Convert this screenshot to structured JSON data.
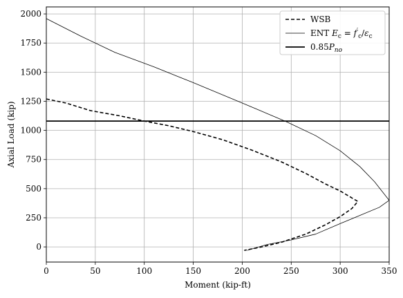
{
  "chart_data": {
    "type": "line",
    "title": "",
    "xlabel": "Moment (kip-ft)",
    "ylabel": "Axial Load (kip)",
    "xlim": [
      0,
      350
    ],
    "ylim": [
      -130,
      2060
    ],
    "xticks": [
      0,
      50,
      100,
      150,
      200,
      250,
      300,
      350
    ],
    "yticks": [
      0,
      250,
      500,
      750,
      1000,
      1250,
      1500,
      1750,
      2000
    ],
    "grid": true,
    "legend_position": "top-right",
    "series": [
      {
        "name": "WSB",
        "style": "dashed",
        "color": "#000000",
        "points": [
          [
            0,
            1270
          ],
          [
            20,
            1235
          ],
          [
            45,
            1170
          ],
          [
            75,
            1125
          ],
          [
            100,
            1080
          ],
          [
            125,
            1040
          ],
          [
            150,
            990
          ],
          [
            180,
            920
          ],
          [
            210,
            830
          ],
          [
            240,
            730
          ],
          [
            265,
            630
          ],
          [
            285,
            540
          ],
          [
            300,
            480
          ],
          [
            312,
            420
          ],
          [
            318,
            390
          ],
          [
            312,
            330
          ],
          [
            300,
            260
          ],
          [
            285,
            190
          ],
          [
            265,
            110
          ],
          [
            240,
            40
          ],
          [
            220,
            0
          ],
          [
            202,
            -30
          ]
        ]
      },
      {
        "name": "ENT E_c = f'_c/ε_c",
        "style": "solid-thin",
        "color": "#000000",
        "points": [
          [
            0,
            1960
          ],
          [
            35,
            1810
          ],
          [
            70,
            1670
          ],
          [
            110,
            1545
          ],
          [
            150,
            1410
          ],
          [
            200,
            1235
          ],
          [
            245,
            1075
          ],
          [
            275,
            955
          ],
          [
            300,
            825
          ],
          [
            320,
            690
          ],
          [
            335,
            560
          ],
          [
            350,
            400
          ],
          [
            340,
            340
          ],
          [
            320,
            270
          ],
          [
            300,
            200
          ],
          [
            275,
            110
          ],
          [
            250,
            60
          ],
          [
            225,
            20
          ],
          [
            205,
            -30
          ]
        ]
      },
      {
        "name": "0.85P_no",
        "style": "solid-thick",
        "color": "#000000",
        "points": [
          [
            0,
            1080
          ],
          [
            350,
            1080
          ]
        ]
      }
    ]
  }
}
